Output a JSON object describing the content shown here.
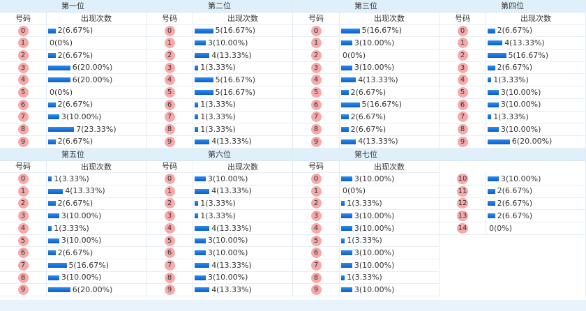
{
  "number_header": "号码",
  "count_header": "出现次数",
  "colors": {
    "bar": "#1a73e8",
    "ball": "#f7a8a8",
    "header_bg": "#dff0fb"
  },
  "sections": [
    {
      "blocks": [
        {
          "title": "第一位",
          "rows": [
            [
              "0",
              2,
              "2(6.67%)"
            ],
            [
              "1",
              0,
              "0(0%)"
            ],
            [
              "2",
              2,
              "2(6.67%)"
            ],
            [
              "3",
              6,
              "6(20.00%)"
            ],
            [
              "4",
              6,
              "6(20.00%)"
            ],
            [
              "5",
              0,
              "0(0%)"
            ],
            [
              "6",
              2,
              "2(6.67%)"
            ],
            [
              "7",
              3,
              "3(10.00%)"
            ],
            [
              "8",
              7,
              "7(23.33%)"
            ],
            [
              "9",
              2,
              "2(6.67%)"
            ]
          ]
        },
        {
          "title": "第二位",
          "rows": [
            [
              "0",
              5,
              "5(16.67%)"
            ],
            [
              "1",
              3,
              "3(10.00%)"
            ],
            [
              "2",
              4,
              "4(13.33%)"
            ],
            [
              "3",
              1,
              "1(3.33%)"
            ],
            [
              "4",
              5,
              "5(16.67%)"
            ],
            [
              "5",
              5,
              "5(16.67%)"
            ],
            [
              "6",
              1,
              "1(3.33%)"
            ],
            [
              "7",
              1,
              "1(3.33%)"
            ],
            [
              "8",
              1,
              "1(3.33%)"
            ],
            [
              "9",
              4,
              "4(13.33%)"
            ]
          ]
        },
        {
          "title": "第三位",
          "rows": [
            [
              "0",
              5,
              "5(16.67%)"
            ],
            [
              "1",
              3,
              "3(10.00%)"
            ],
            [
              "2",
              0,
              "0(0%)"
            ],
            [
              "3",
              3,
              "3(10.00%)"
            ],
            [
              "4",
              4,
              "4(13.33%)"
            ],
            [
              "5",
              2,
              "2(6.67%)"
            ],
            [
              "6",
              5,
              "5(16.67%)"
            ],
            [
              "7",
              2,
              "2(6.67%)"
            ],
            [
              "8",
              2,
              "2(6.67%)"
            ],
            [
              "9",
              4,
              "4(13.33%)"
            ]
          ]
        },
        {
          "title": "第四位",
          "rows": [
            [
              "0",
              2,
              "2(6.67%)"
            ],
            [
              "1",
              4,
              "4(13.33%)"
            ],
            [
              "2",
              5,
              "5(16.67%)"
            ],
            [
              "3",
              2,
              "2(6.67%)"
            ],
            [
              "4",
              1,
              "1(3.33%)"
            ],
            [
              "5",
              3,
              "3(10.00%)"
            ],
            [
              "6",
              3,
              "3(10.00%)"
            ],
            [
              "7",
              1,
              "1(3.33%)"
            ],
            [
              "8",
              3,
              "3(10.00%)"
            ],
            [
              "9",
              6,
              "6(20.00%)"
            ]
          ]
        }
      ]
    },
    {
      "blocks": [
        {
          "title": "第五位",
          "rows": [
            [
              "0",
              1,
              "1(3.33%)"
            ],
            [
              "1",
              4,
              "4(13.33%)"
            ],
            [
              "2",
              2,
              "2(6.67%)"
            ],
            [
              "3",
              3,
              "3(10.00%)"
            ],
            [
              "4",
              1,
              "1(3.33%)"
            ],
            [
              "5",
              3,
              "3(10.00%)"
            ],
            [
              "6",
              2,
              "2(6.67%)"
            ],
            [
              "7",
              5,
              "5(16.67%)"
            ],
            [
              "8",
              3,
              "3(10.00%)"
            ],
            [
              "9",
              6,
              "6(20.00%)"
            ]
          ]
        },
        {
          "title": "第六位",
          "rows": [
            [
              "0",
              3,
              "3(10.00%)"
            ],
            [
              "1",
              4,
              "4(13.33%)"
            ],
            [
              "2",
              1,
              "1(3.33%)"
            ],
            [
              "3",
              1,
              "1(3.33%)"
            ],
            [
              "4",
              4,
              "4(13.33%)"
            ],
            [
              "5",
              3,
              "3(10.00%)"
            ],
            [
              "6",
              3,
              "3(10.00%)"
            ],
            [
              "7",
              4,
              "4(13.33%)"
            ],
            [
              "8",
              3,
              "3(10.00%)"
            ],
            [
              "9",
              4,
              "4(13.33%)"
            ]
          ]
        },
        {
          "title": "第七位",
          "rows": [
            [
              "0",
              3,
              "3(10.00%)"
            ],
            [
              "1",
              0,
              "0(0%)"
            ],
            [
              "2",
              1,
              "1(3.33%)"
            ],
            [
              "3",
              3,
              "3(10.00%)"
            ],
            [
              "4",
              3,
              "3(10.00%)"
            ],
            [
              "5",
              1,
              "1(3.33%)"
            ],
            [
              "6",
              3,
              "3(10.00%)"
            ],
            [
              "7",
              3,
              "3(10.00%)"
            ],
            [
              "8",
              1,
              "1(3.33%)"
            ],
            [
              "9",
              3,
              "3(10.00%)"
            ]
          ]
        },
        {
          "title": "",
          "no_subheader": true,
          "rows": [
            [
              "10",
              3,
              "3(10.00%)"
            ],
            [
              "11",
              2,
              "2(6.67%)"
            ],
            [
              "12",
              2,
              "2(6.67%)"
            ],
            [
              "13",
              2,
              "2(6.67%)"
            ],
            [
              "14",
              0,
              "0(0%)"
            ]
          ]
        }
      ]
    }
  ]
}
